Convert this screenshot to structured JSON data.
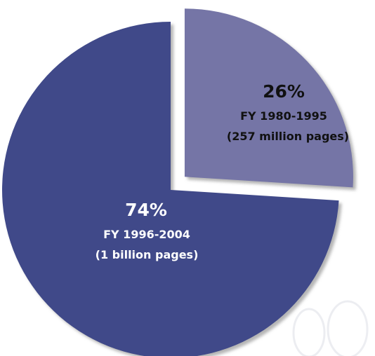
{
  "chart_data": {
    "type": "pie",
    "slices": [
      {
        "percent_label": "26%",
        "value": 26,
        "period_label": "FY 1980-1995",
        "pages_label": "(257 million pages)",
        "color": "#7474A6",
        "exploded": true
      },
      {
        "percent_label": "74%",
        "value": 74,
        "period_label": "FY 1996-2004",
        "pages_label": "(1 billion pages)",
        "color": "#3F4A89",
        "exploded": false
      }
    ]
  }
}
